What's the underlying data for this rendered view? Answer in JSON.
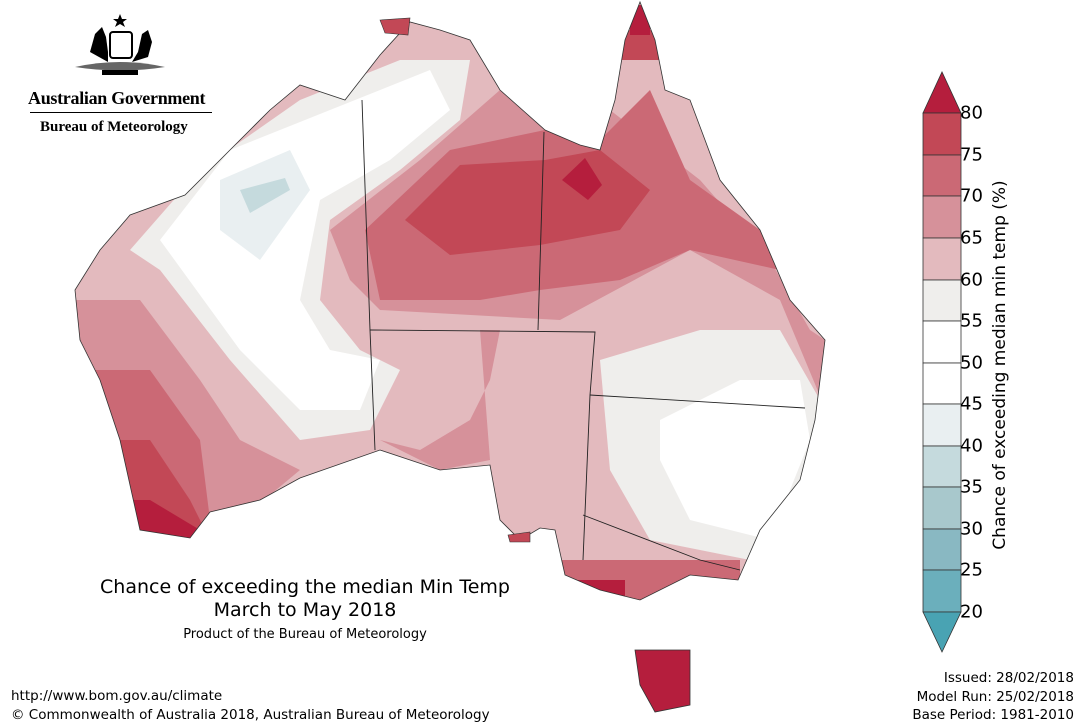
{
  "branding": {
    "logo": "Australian coat of arms",
    "government": "Australian Government",
    "bureau": "Bureau of Meteorology"
  },
  "title": {
    "line1": "Chance of exceeding the median Min Temp",
    "line2": "March to May 2018",
    "product": "Product of the Bureau of Meteorology"
  },
  "footer": {
    "url": "http://www.bom.gov.au/climate",
    "copyright": "© Commonwealth of Australia 2018, Australian Bureau of Meteorology",
    "issued": "Issued: 28/02/2018",
    "model_run": "Model Run: 25/02/2018",
    "base_period": "Base Period: 1981-2010"
  },
  "legend": {
    "label": "Chance of exceeding median min temp (%)",
    "ticks": [
      "80",
      "75",
      "70",
      "65",
      "60",
      "55",
      "50",
      "45",
      "40",
      "35",
      "30",
      "25",
      "20"
    ],
    "colors": {
      "above80": "#b51e3d",
      "75-80": "#c24856",
      "70-75": "#cb6975",
      "65-70": "#d6919a",
      "60-65": "#e3babe",
      "55-60": "#efeeec",
      "50-55": "#ffffff",
      "45-50": "#ffffff",
      "40-45": "#e9eff1",
      "35-40": "#c5dadd",
      "30-35": "#a8c8cc",
      "25-30": "#89b8c2",
      "20-25": "#6bafbc",
      "below20": "#49a3b3"
    }
  }
}
